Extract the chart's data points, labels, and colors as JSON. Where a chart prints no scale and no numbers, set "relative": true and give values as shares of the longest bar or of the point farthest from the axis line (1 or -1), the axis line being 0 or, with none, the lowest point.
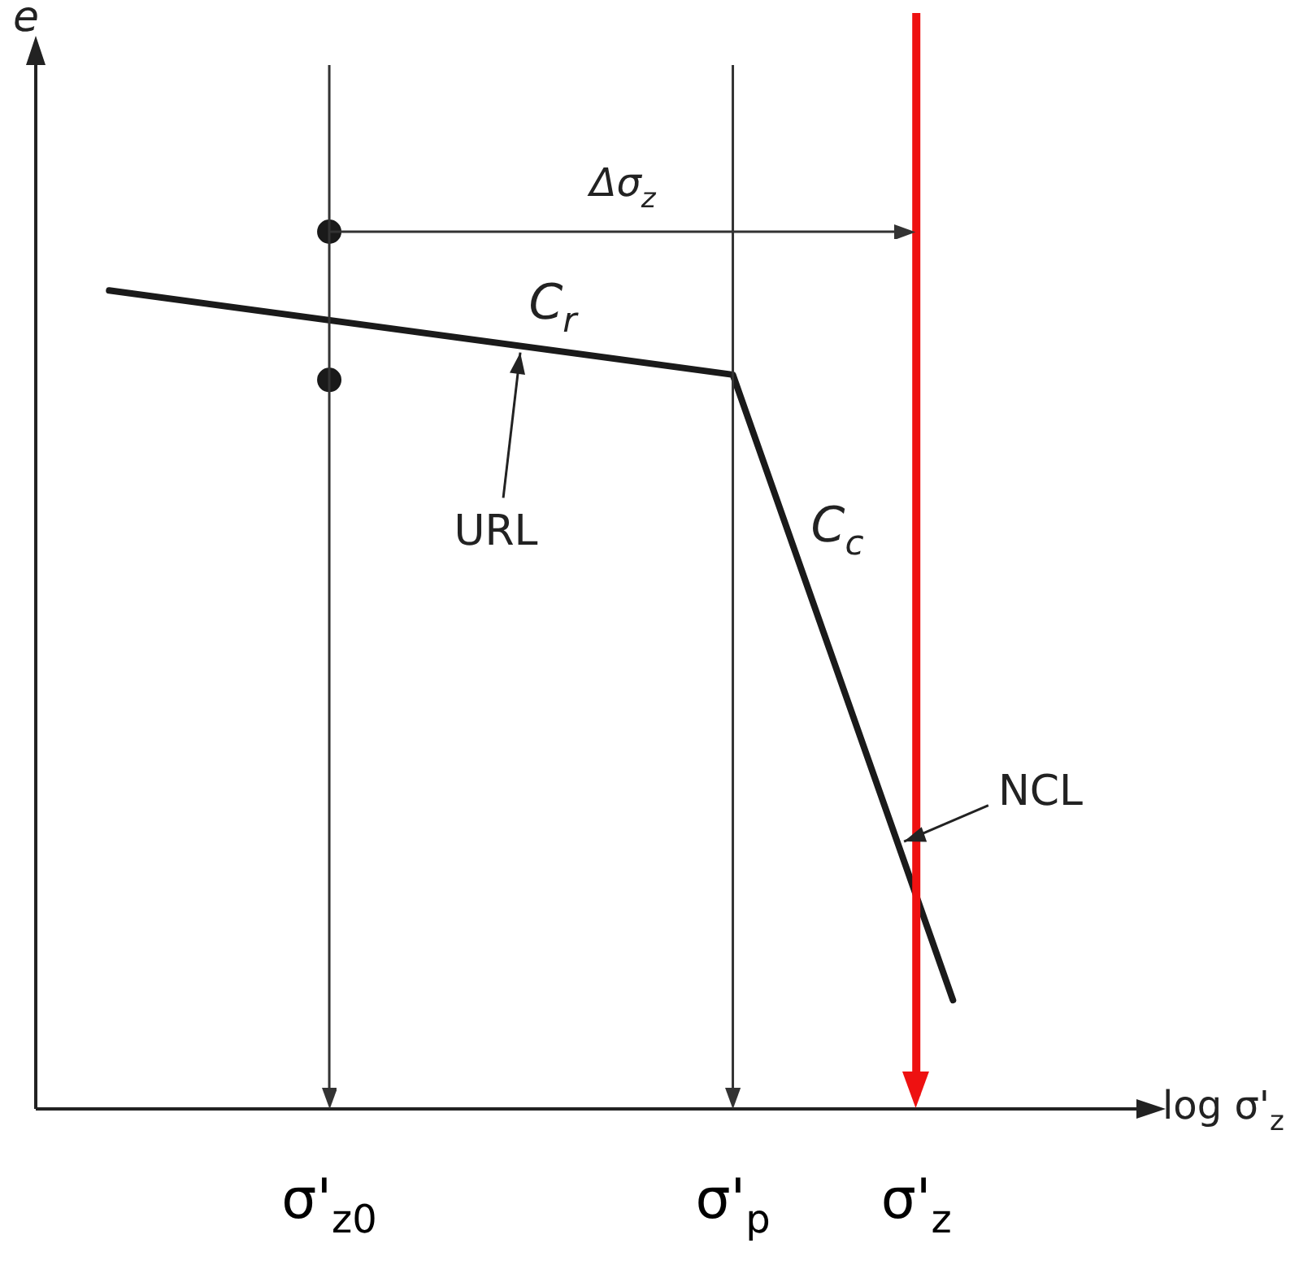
{
  "chart_data": {
    "type": "line",
    "relative": true,
    "ylabel": "e",
    "xlabel": "log σ'$_{z}$",
    "categories": [
      null,
      null,
      null,
      null,
      null,
      null,
      null,
      null,
      "σ'$_{z0}$",
      null,
      null,
      null,
      null,
      null,
      null,
      null,
      null,
      null,
      null,
      "σ'$_{p}$",
      null,
      null,
      null,
      null,
      "σ'$_{z}$",
      null,
      null,
      null,
      null,
      null,
      null
    ],
    "series": [
      {
        "type": "line",
        "color": "#1a1a1a",
        "values": [
          null,
          null,
          0.933,
          null,
          null,
          null,
          null,
          null,
          null,
          null,
          null,
          null,
          null,
          null,
          null,
          null,
          null,
          null,
          null,
          0.837,
          null,
          null,
          null,
          null,
          null,
          0.124,
          null,
          null,
          null,
          null,
          null
        ]
      },
      {
        "type": "scatter",
        "color": "#1a1a1a",
        "values": [
          null,
          null,
          null,
          null,
          null,
          null,
          null,
          null,
          1,
          null,
          null,
          null,
          null,
          null,
          null,
          null,
          null,
          null,
          null,
          null,
          null,
          null,
          null,
          null,
          null,
          null,
          null,
          null,
          null,
          null,
          null
        ]
      },
      {
        "type": "scatter",
        "color": "#1a1a1a",
        "values": [
          null,
          null,
          null,
          null,
          null,
          null,
          null,
          null,
          0.831,
          null,
          null,
          null,
          null,
          null,
          null,
          null,
          null,
          null,
          null,
          null,
          null,
          null,
          null,
          null,
          null,
          null,
          null,
          null,
          null,
          null,
          null
        ]
      }
    ],
    "ref_lines": [
      {
        "axis": "x",
        "value": "σ'$_{z0}$"
      },
      {
        "axis": "x",
        "value": "σ'$_{p}$"
      },
      {
        "axis": "x",
        "value": "σ'$_{z}$",
        "color": "#ee1111"
      }
    ],
    "annotations": [
      "Δσ$_{z}$",
      "C$_{r}$",
      "URL",
      "C$_{c}$",
      "NCL"
    ],
    "legend": false
  }
}
